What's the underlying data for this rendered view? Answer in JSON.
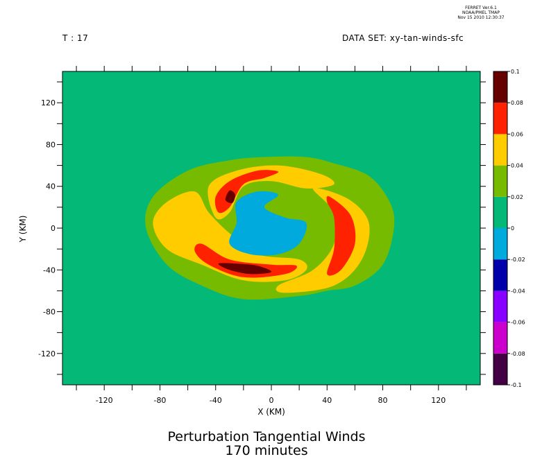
{
  "header": {
    "ferret_line1": "FERRET Ver.6.1",
    "ferret_line2": "NOAA/PMEL TMAP",
    "ferret_line3": "Nov 15 2010 12:30:37",
    "time_label": "T : 17",
    "dataset_label": "DATA SET: xy-tan-winds-sfc"
  },
  "colors": {
    "background": "#04b878",
    "levels": [
      "#440044",
      "#cc00cc",
      "#8800ff",
      "#0000aa",
      "#00aadd",
      "#04b878",
      "#77bb00",
      "#ffcc00",
      "#ff2200",
      "#660000"
    ]
  },
  "chart_data": {
    "type": "heatmap",
    "title": "Perturbation Tangential Winds",
    "subtitle": "170 minutes",
    "xlabel": "X (KM)",
    "ylabel": "Y (KM)",
    "xlim": [
      -150,
      150
    ],
    "ylim": [
      -150,
      150
    ],
    "xticks": [
      -120,
      -80,
      -40,
      0,
      40,
      80,
      120
    ],
    "yticks": [
      -120,
      -80,
      -40,
      0,
      40,
      80,
      120
    ],
    "colorbar": {
      "levels": [
        -0.1,
        -0.08,
        -0.06,
        -0.04,
        -0.02,
        0,
        0.02,
        0.04,
        0.06,
        0.08,
        0.1
      ],
      "labels": [
        "-0.1",
        "-0.08",
        "-0.06",
        "-0.04",
        "-0.02",
        "0",
        "0.02",
        "0.04",
        "0.06",
        "0.08",
        "0.1"
      ]
    },
    "regions": [
      {
        "level": "0.02 to 0.04",
        "points": [
          [
            -75,
            -35
          ],
          [
            -90,
            0
          ],
          [
            -85,
            30
          ],
          [
            -60,
            55
          ],
          [
            -30,
            65
          ],
          [
            -5,
            68
          ],
          [
            25,
            68
          ],
          [
            45,
            62
          ],
          [
            70,
            50
          ],
          [
            85,
            25
          ],
          [
            88,
            0
          ],
          [
            80,
            -35
          ],
          [
            60,
            -55
          ],
          [
            40,
            -60
          ],
          [
            20,
            -65
          ],
          [
            -20,
            -68
          ],
          [
            -50,
            -55
          ]
        ]
      },
      {
        "level": "0.04 to 0.06",
        "points": [
          [
            -85,
            5
          ],
          [
            -75,
            25
          ],
          [
            -55,
            35
          ],
          [
            -45,
            15
          ],
          [
            -30,
            -5
          ],
          [
            -10,
            -25
          ],
          [
            20,
            -30
          ],
          [
            25,
            -40
          ],
          [
            10,
            -50
          ],
          [
            -20,
            -50
          ],
          [
            -50,
            -35
          ],
          [
            -75,
            -20
          ]
        ]
      },
      {
        "level": "0.04 to 0.06",
        "points": [
          [
            -45,
            40
          ],
          [
            -25,
            55
          ],
          [
            5,
            60
          ],
          [
            35,
            52
          ],
          [
            45,
            42
          ],
          [
            25,
            38
          ],
          [
            0,
            45
          ],
          [
            -20,
            40
          ],
          [
            -30,
            15
          ],
          [
            -40,
            10
          ]
        ]
      },
      {
        "level": "0.04 to 0.06",
        "points": [
          [
            30,
            38
          ],
          [
            55,
            28
          ],
          [
            70,
            5
          ],
          [
            65,
            -30
          ],
          [
            45,
            -55
          ],
          [
            10,
            -62
          ],
          [
            5,
            -55
          ],
          [
            30,
            -40
          ],
          [
            45,
            -15
          ],
          [
            45,
            15
          ]
        ]
      },
      {
        "level": "0.06 to 0.08",
        "points": [
          [
            -50,
            -15
          ],
          [
            -30,
            -30
          ],
          [
            0,
            -35
          ],
          [
            18,
            -36
          ],
          [
            10,
            -44
          ],
          [
            -20,
            -47
          ],
          [
            -45,
            -35
          ],
          [
            -55,
            -22
          ]
        ]
      },
      {
        "level": "0.06 to 0.08",
        "points": [
          [
            -40,
            30
          ],
          [
            -30,
            45
          ],
          [
            -10,
            55
          ],
          [
            5,
            54
          ],
          [
            -5,
            48
          ],
          [
            -20,
            42
          ],
          [
            -30,
            20
          ],
          [
            -38,
            15
          ]
        ]
      },
      {
        "level": "0.06 to 0.08",
        "points": [
          [
            42,
            30
          ],
          [
            57,
            12
          ],
          [
            60,
            -15
          ],
          [
            50,
            -40
          ],
          [
            40,
            -44
          ],
          [
            45,
            -20
          ],
          [
            45,
            10
          ],
          [
            40,
            25
          ]
        ]
      },
      {
        "level": "0.08 to 0.1",
        "points": [
          [
            -38,
            -34
          ],
          [
            -30,
            -40
          ],
          [
            -15,
            -44
          ],
          [
            0,
            -42
          ],
          [
            -10,
            -36
          ],
          [
            -25,
            -34
          ]
        ]
      },
      {
        "level": "0.08 to 0.1",
        "points": [
          [
            -33,
            27
          ],
          [
            -30,
            36
          ],
          [
            -26,
            32
          ],
          [
            -28,
            24
          ]
        ]
      },
      {
        "level": "0 to -0.02",
        "points": [
          [
            -25,
            25
          ],
          [
            -10,
            35
          ],
          [
            5,
            32
          ],
          [
            -5,
            20
          ],
          [
            10,
            10
          ],
          [
            25,
            5
          ],
          [
            20,
            -15
          ],
          [
            5,
            -25
          ],
          [
            -15,
            -25
          ],
          [
            -30,
            -15
          ],
          [
            -25,
            5
          ]
        ]
      }
    ]
  }
}
